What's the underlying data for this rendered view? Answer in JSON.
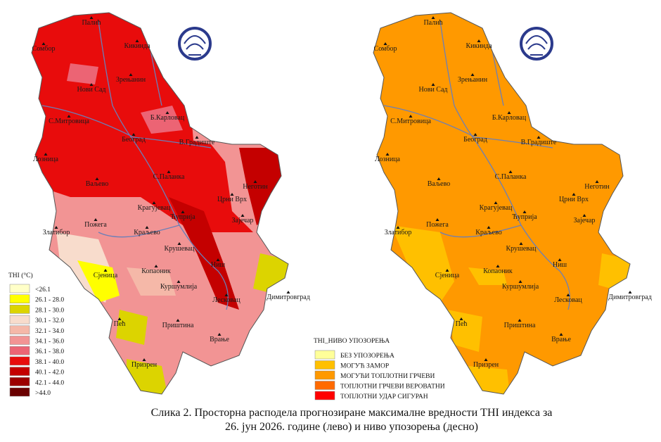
{
  "cities": [
    "Палић",
    "Сомбор",
    "Кикинда",
    "Нови Сад",
    "Зрењанин",
    "С.Митровица",
    "Б.Карловац",
    "Београд",
    "В.Градиште",
    "Лозница",
    "Ваљево",
    "С.Паланка",
    "Неготин",
    "Црни Врх",
    "Крагујевац",
    "Ћуприја",
    "Зајечар",
    "Златибор",
    "Пожега",
    "Краљево",
    "Крушевац",
    "Ниш",
    "Сјеница",
    "Копаоник",
    "Куршумлија",
    "Лесковац",
    "Димитровград",
    "Пећ",
    "Приштина",
    "Врање",
    "Призрен"
  ],
  "thi_legend": {
    "title": "THI (°C)",
    "items": [
      {
        "label": "<26.1",
        "color": "#ffffc8"
      },
      {
        "label": "26.1 - 28.0",
        "color": "#ffff00"
      },
      {
        "label": "28.1 - 30.0",
        "color": "#dcd400"
      },
      {
        "label": "30.1 - 32.0",
        "color": "#f8dccc"
      },
      {
        "label": "32.1 - 34.0",
        "color": "#f5b8a8"
      },
      {
        "label": "34.1 - 36.0",
        "color": "#f29494"
      },
      {
        "label": "36.1 - 38.0",
        "color": "#ec6474"
      },
      {
        "label": "38.1 - 40.0",
        "color": "#e80c0c"
      },
      {
        "label": "40.1 - 42.0",
        "color": "#c40000"
      },
      {
        "label": "42.1 - 44.0",
        "color": "#9c0000"
      },
      {
        "label": ">44.0",
        "color": "#6a0000"
      }
    ]
  },
  "warning_legend": {
    "title": "THI_НИВО УПОЗОРЕЊА",
    "items": [
      {
        "label": "БЕЗ УПОЗОРЕЊА",
        "color": "#ffff99"
      },
      {
        "label": "МОГУЋ ЗАМОР",
        "color": "#ffc000"
      },
      {
        "label": "МОГУЋИ ТОПЛОТНИ ГРЧЕВИ",
        "color": "#ff9900"
      },
      {
        "label": "ТОПЛОТНИ ГРЧЕВИ ВЕРОВАТНИ",
        "color": "#ff6a00"
      },
      {
        "label": "ТОПЛОТНИ УДАР СИГУРАН",
        "color": "#ff0000"
      }
    ]
  },
  "caption": [
    "Слика 2. Просторна расподела прогнозиране максималне вредности THI индекса за",
    "26. јун 2026. године (лево) и ниво упозорења (десно)"
  ]
}
